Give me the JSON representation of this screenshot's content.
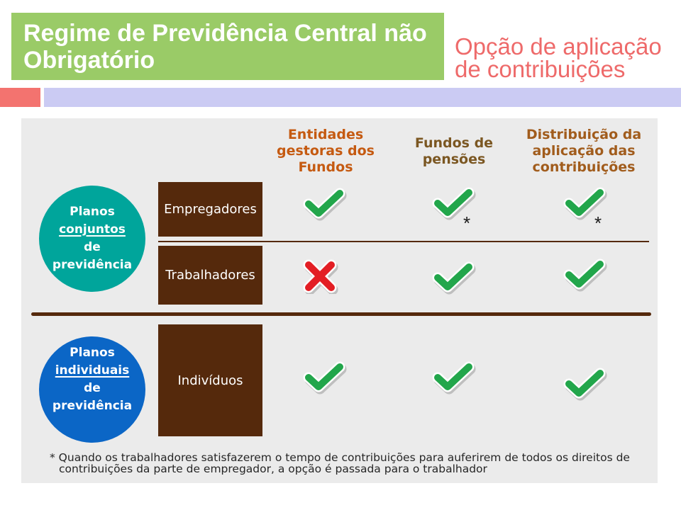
{
  "title": {
    "lines": [
      "Regime de Previdência Central não",
      "Obrigatório"
    ]
  },
  "subtitle": {
    "lines": [
      "Opção de aplicação",
      "de contribuições"
    ]
  },
  "colors": {
    "title_bg": "#9ACB67",
    "subtitle_text": "#EE6A6A",
    "accent_bar": "#F3736F",
    "divider_bar": "#CBCBF3",
    "panel_bg": "#EBEBEB",
    "row_label_bg": "#55290C",
    "rule": "#55290C",
    "check": "#22A64B",
    "cross": "#E31E24"
  },
  "columns": [
    {
      "lines": [
        "Entidades",
        "gestoras dos",
        "Fundos"
      ],
      "color": "#C55A11"
    },
    {
      "lines": [
        "Fundos de",
        "pensões"
      ],
      "color": "#7B5722"
    },
    {
      "lines": [
        "Distribuição da",
        "aplicação das",
        "contribuições"
      ],
      "color": "#A15C1C"
    }
  ],
  "groups": [
    {
      "lines": [
        "Planos",
        "conjuntos",
        "de",
        "previdência"
      ],
      "color": "#00A59B"
    },
    {
      "lines": [
        "Planos",
        "individuais",
        "de",
        "previdência"
      ],
      "color": "#0B66C6"
    }
  ],
  "rows": [
    {
      "label": "Empregadores",
      "cells": [
        {
          "icon": "check-icon"
        },
        {
          "icon": "check-icon",
          "note": "*"
        },
        {
          "icon": "check-icon",
          "note": "*"
        }
      ]
    },
    {
      "label": "Trabalhadores",
      "cells": [
        {
          "icon": "cross-icon"
        },
        {
          "icon": "check-icon"
        },
        {
          "icon": "check-icon"
        }
      ]
    },
    {
      "label": "Indivíduos",
      "cells": [
        {
          "icon": "check-icon"
        },
        {
          "icon": "check-icon"
        },
        {
          "icon": "check-icon"
        }
      ]
    }
  ],
  "footnote": {
    "lines": [
      "* Quando os trabalhadores satisfazerem o tempo de contribuições para auferirem de todos os direitos de",
      "contribuições da parte de empregador, a opção é passada para o trabalhador"
    ]
  }
}
